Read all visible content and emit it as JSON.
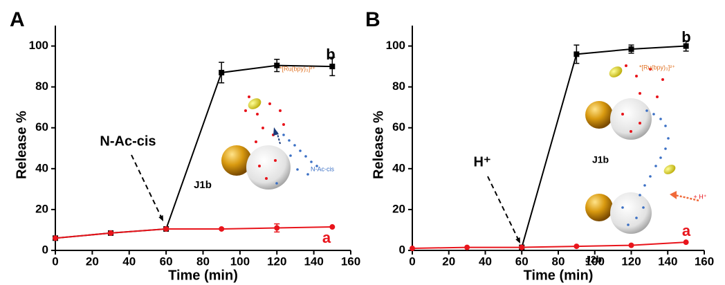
{
  "chart_data": [
    {
      "type": "line",
      "panel": "A",
      "xlabel": "Time (min)",
      "ylabel": "Release %",
      "x": [
        0,
        30,
        60,
        90,
        120,
        150
      ],
      "series": [
        {
          "name": "b",
          "color": "#000000",
          "marker": "square",
          "values": [
            6,
            8.5,
            10.5,
            87,
            90.5,
            90
          ],
          "errors": [
            null,
            0.5,
            null,
            5,
            3,
            4.5
          ]
        },
        {
          "name": "a",
          "color": "#e8141b",
          "marker": "circle",
          "values": [
            6,
            8.5,
            10.5,
            10.5,
            11,
            11.5
          ],
          "errors": [
            null,
            null,
            null,
            null,
            2,
            null
          ]
        }
      ],
      "xlim": [
        0,
        160
      ],
      "xticks": [
        0,
        20,
        40,
        60,
        80,
        100,
        120,
        140,
        160
      ],
      "ylim": [
        0,
        110
      ],
      "yticks": [
        0,
        20,
        40,
        60,
        80,
        100
      ],
      "annotations": [
        "N-Ac-cis",
        "J1b",
        "N-Ac-cis",
        "*[Ru(bpy)₃]²⁺"
      ]
    },
    {
      "type": "line",
      "panel": "B",
      "xlabel": "Time (min)",
      "ylabel": "Release %",
      "x": [
        0,
        30,
        60,
        90,
        120,
        150
      ],
      "series": [
        {
          "name": "b",
          "color": "#000000",
          "marker": "square",
          "values": [
            null,
            null,
            1.5,
            96,
            98.5,
            100
          ],
          "errors": [
            null,
            null,
            null,
            4.5,
            2,
            2.5
          ]
        },
        {
          "name": "a",
          "color": "#e8141b",
          "marker": "circle",
          "values": [
            1,
            1.5,
            1.5,
            2,
            2.5,
            4
          ],
          "errors": [
            null,
            null,
            null,
            null,
            null,
            null
          ]
        }
      ],
      "xlim": [
        0,
        160
      ],
      "xticks": [
        0,
        20,
        40,
        60,
        80,
        100,
        120,
        140,
        160
      ],
      "ylim": [
        0,
        110
      ],
      "yticks": [
        0,
        20,
        40,
        60,
        80,
        100
      ],
      "annotations": [
        "H⁺",
        "J1b",
        "J2b",
        "+ H⁺",
        "*[Ru(bpy)₃]²⁺"
      ]
    }
  ]
}
